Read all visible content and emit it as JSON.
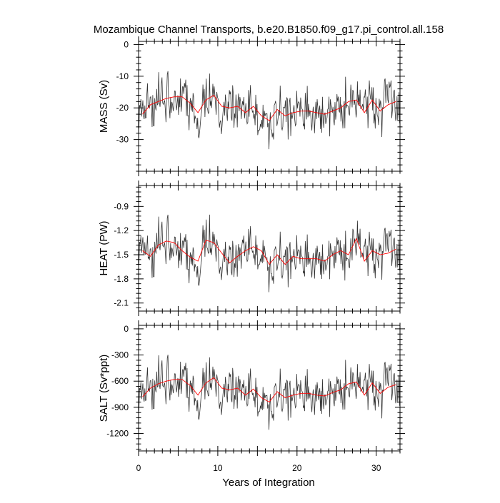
{
  "chart_data": {
    "type": "line",
    "title": "Mozambique Channel Transports, b.e20.B1850.f09_g17.pi_control.all.158",
    "xlabel": "Years of Integration",
    "xlim": [
      0,
      33
    ],
    "x_ticks": [
      0,
      10,
      20,
      30
    ],
    "x_tick_labels": [
      "0",
      "10",
      "20",
      "30"
    ],
    "grid": false,
    "legend": "none",
    "colors": {
      "monthly": "#333333",
      "annual": "#ff0000",
      "axes": "#000000"
    },
    "panels": [
      {
        "name": "mass",
        "ylabel": "MASS (Sv)",
        "ylim": [
          -40,
          1
        ],
        "y_ticks": [
          0,
          -10,
          -20,
          -30
        ],
        "y_tick_labels": [
          "0",
          "-10",
          "-20",
          "-30"
        ],
        "annual_x": [
          0.5,
          1.5,
          2.5,
          3.5,
          4.5,
          5.5,
          6.5,
          7.5,
          8.5,
          9.5,
          10.5,
          11.5,
          12.5,
          13.5,
          14.5,
          15.5,
          16.5,
          17.5,
          18.5,
          19.5,
          20.5,
          21.5,
          22.5,
          23.5,
          24.5,
          25.5,
          26.5,
          27.5,
          28.5,
          29.5,
          30.5,
          31.5,
          32.5
        ],
        "annual_y": [
          -22,
          -19,
          -18,
          -17,
          -16.5,
          -16.5,
          -18.5,
          -21.5,
          -17.5,
          -16,
          -19.5,
          -20,
          -19.5,
          -21.5,
          -19.5,
          -22.5,
          -24,
          -20.5,
          -22.5,
          -21.5,
          -21,
          -21,
          -21.5,
          -22,
          -21,
          -20,
          -18,
          -17.5,
          -21.5,
          -17.5,
          -21,
          -19,
          -18
        ]
      },
      {
        "name": "heat",
        "ylabel": "HEAT (PW)",
        "ylim": [
          -2.2,
          -0.64
        ],
        "y_ticks": [
          -0.9,
          -1.2,
          -1.5,
          -1.8,
          -2.1
        ],
        "y_tick_labels": [
          "-0.9",
          "-1.2",
          "-1.5",
          "-1.8",
          "-2.1"
        ],
        "annual_x": [
          0.5,
          1.5,
          2.5,
          3.5,
          4.5,
          5.5,
          6.5,
          7.5,
          8.5,
          9.5,
          10.5,
          11.5,
          12.5,
          13.5,
          14.5,
          15.5,
          16.5,
          17.5,
          18.5,
          19.5,
          20.5,
          21.5,
          22.5,
          23.5,
          24.5,
          25.5,
          26.5,
          27.5,
          28.5,
          29.5,
          30.5,
          31.5,
          32.5
        ],
        "annual_y": [
          -1.45,
          -1.52,
          -1.38,
          -1.33,
          -1.35,
          -1.45,
          -1.53,
          -1.58,
          -1.32,
          -1.35,
          -1.48,
          -1.6,
          -1.52,
          -1.45,
          -1.4,
          -1.45,
          -1.62,
          -1.5,
          -1.62,
          -1.52,
          -1.55,
          -1.55,
          -1.55,
          -1.58,
          -1.5,
          -1.45,
          -1.5,
          -1.3,
          -1.58,
          -1.45,
          -1.5,
          -1.48,
          -1.43
        ]
      },
      {
        "name": "salt",
        "ylabel": "SALT (Sv*ppt)",
        "ylim": [
          -1400,
          40
        ],
        "y_ticks": [
          0,
          -300,
          -600,
          -900,
          -1200
        ],
        "y_tick_labels": [
          "0",
          "-300",
          "-600",
          "-900",
          "-1200"
        ],
        "annual_x": [
          0.5,
          1.5,
          2.5,
          3.5,
          4.5,
          5.5,
          6.5,
          7.5,
          8.5,
          9.5,
          10.5,
          11.5,
          12.5,
          13.5,
          14.5,
          15.5,
          16.5,
          17.5,
          18.5,
          19.5,
          20.5,
          21.5,
          22.5,
          23.5,
          24.5,
          25.5,
          26.5,
          27.5,
          28.5,
          29.5,
          30.5,
          31.5,
          32.5
        ],
        "annual_y": [
          -780,
          -680,
          -630,
          -600,
          -580,
          -580,
          -650,
          -760,
          -620,
          -560,
          -680,
          -700,
          -680,
          -760,
          -690,
          -790,
          -840,
          -720,
          -790,
          -760,
          -740,
          -740,
          -760,
          -770,
          -730,
          -700,
          -630,
          -610,
          -760,
          -620,
          -740,
          -670,
          -640
        ]
      }
    ]
  }
}
